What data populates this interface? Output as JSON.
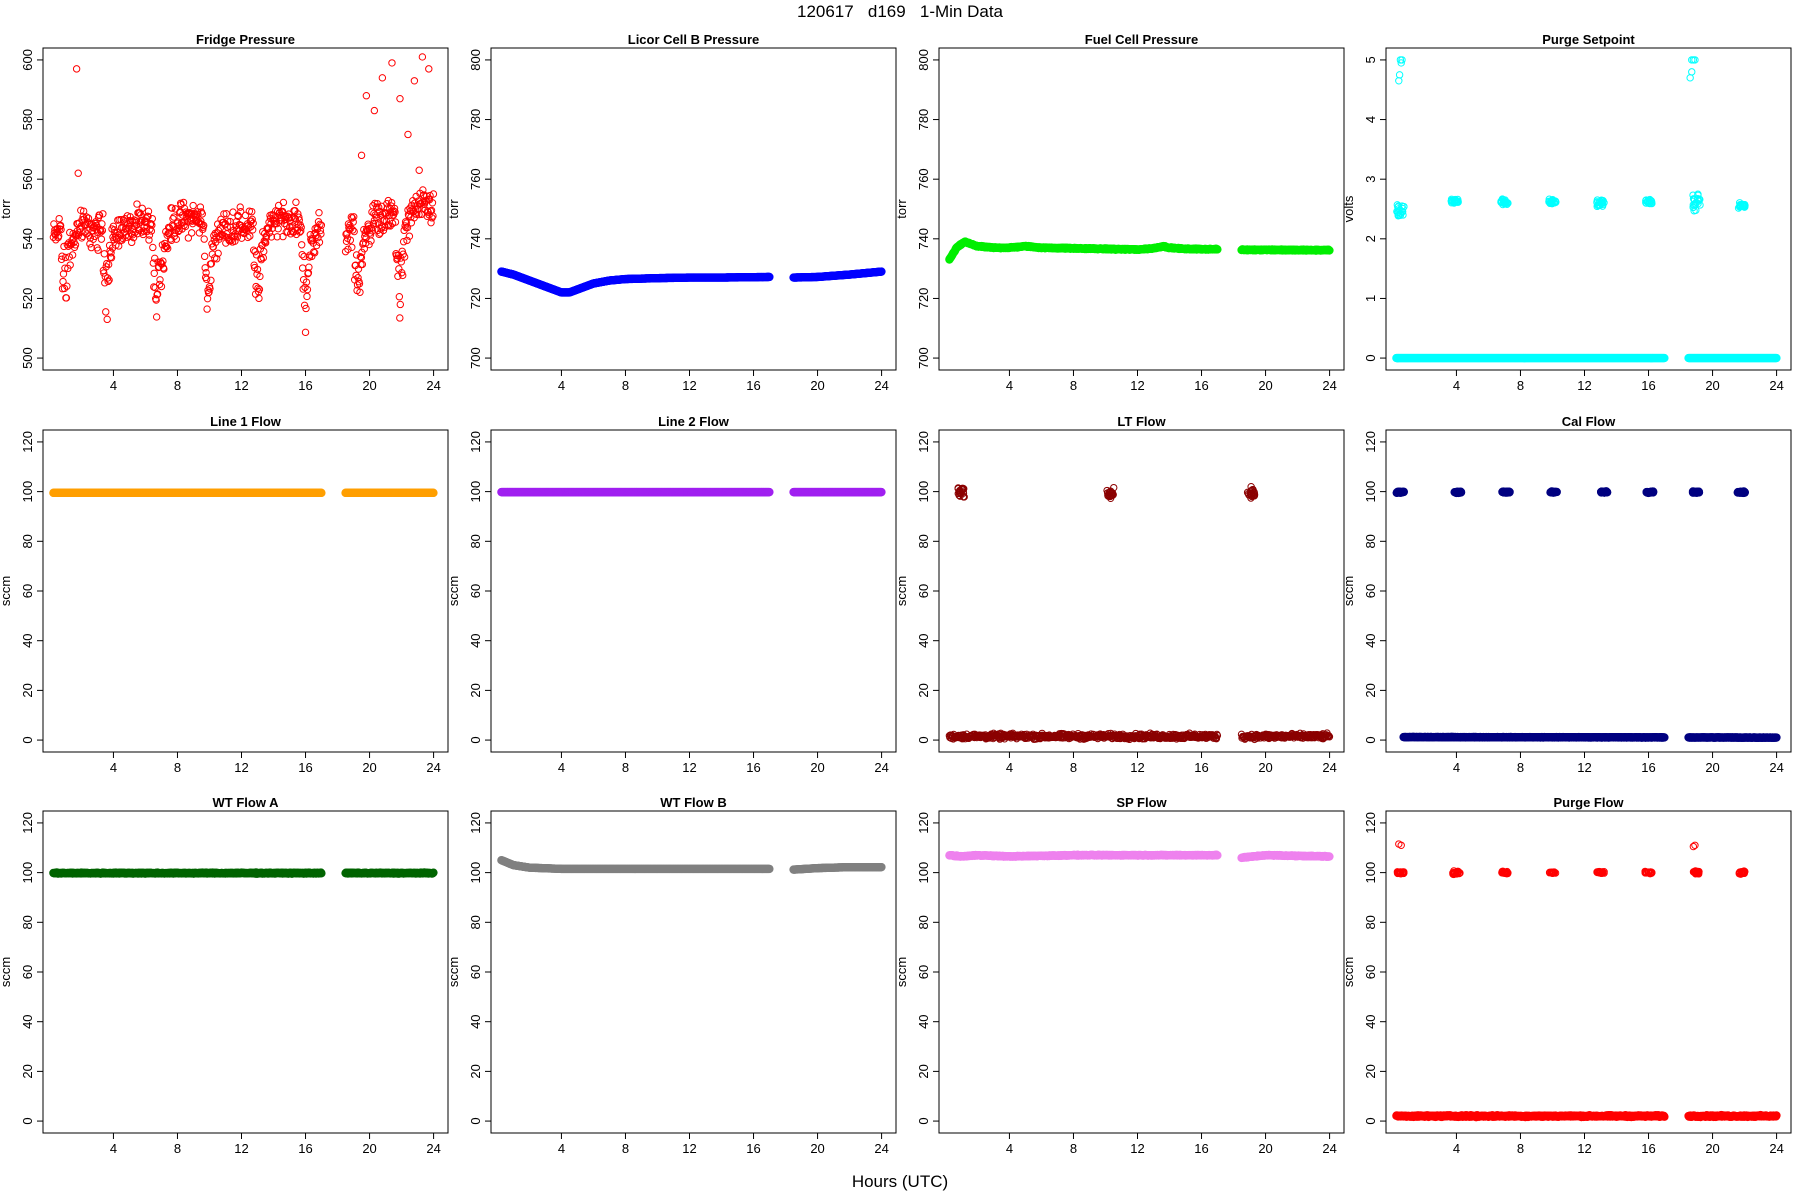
{
  "header": {
    "title": "120617   d169   1-Min Data",
    "xlabel": "Hours (UTC)"
  },
  "chart_data": [
    {
      "type": "scatter",
      "title": "Fridge Pressure",
      "ylabel": "torr",
      "ylim": [
        500,
        600
      ],
      "yticks": [
        500,
        520,
        540,
        560,
        580,
        600
      ],
      "xlim": [
        0,
        24
      ],
      "xticks": [
        4,
        8,
        12,
        16,
        20,
        24
      ],
      "color": "#ff0000",
      "style": "open",
      "segments": [
        [
          0.25,
          17
        ],
        [
          18.5,
          24
        ]
      ],
      "base": [
        [
          0.25,
          540
        ],
        [
          1,
          546
        ],
        [
          2,
          544
        ],
        [
          3,
          542
        ],
        [
          4,
          546
        ],
        [
          5,
          543
        ],
        [
          6,
          545
        ],
        [
          7,
          541
        ],
        [
          8,
          546
        ],
        [
          9,
          547
        ],
        [
          10,
          545
        ],
        [
          11,
          543
        ],
        [
          12,
          544
        ],
        [
          13,
          545
        ],
        [
          14,
          547
        ],
        [
          15,
          546
        ],
        [
          16,
          544
        ],
        [
          17,
          544
        ],
        [
          18.5,
          540
        ],
        [
          19,
          545
        ],
        [
          20,
          546
        ],
        [
          21,
          547
        ],
        [
          22,
          549
        ],
        [
          23,
          550
        ],
        [
          24,
          551
        ]
      ],
      "noise": 14,
      "dips": [
        0.9,
        3.5,
        6.6,
        9.8,
        12.9,
        15.9,
        19.2,
        21.8
      ],
      "outliers": [
        [
          1.7,
          597
        ],
        [
          1.8,
          562
        ],
        [
          19.8,
          588
        ],
        [
          20.3,
          583
        ],
        [
          20.8,
          594
        ],
        [
          21.4,
          599
        ],
        [
          21.9,
          587
        ],
        [
          22.4,
          575
        ],
        [
          22.8,
          593
        ],
        [
          23.3,
          601
        ],
        [
          23.7,
          597
        ],
        [
          23.1,
          563
        ],
        [
          19.5,
          568
        ]
      ]
    },
    {
      "type": "line",
      "title": "Licor Cell B Pressure",
      "ylabel": "torr",
      "ylim": [
        700,
        800
      ],
      "yticks": [
        700,
        720,
        740,
        760,
        780,
        800
      ],
      "xlim": [
        0,
        24
      ],
      "xticks": [
        4,
        8,
        12,
        16,
        20,
        24
      ],
      "color": "#0000ff",
      "style": "thick",
      "segments": [
        [
          0.25,
          17
        ],
        [
          18.5,
          24
        ]
      ],
      "base": [
        [
          0.25,
          729
        ],
        [
          1,
          728
        ],
        [
          2,
          726
        ],
        [
          3,
          724
        ],
        [
          4,
          722
        ],
        [
          4.5,
          722
        ],
        [
          5,
          723
        ],
        [
          6,
          725
        ],
        [
          7,
          726
        ],
        [
          8,
          726.5
        ],
        [
          10,
          726.8
        ],
        [
          12,
          727
        ],
        [
          14,
          727
        ],
        [
          17,
          727.2
        ],
        [
          18.5,
          727
        ],
        [
          20,
          727.2
        ],
        [
          22,
          728
        ],
        [
          24,
          729
        ]
      ],
      "noise": 0
    },
    {
      "type": "line",
      "title": "Fuel Cell Pressure",
      "ylabel": "torr",
      "ylim": [
        700,
        800
      ],
      "yticks": [
        700,
        720,
        740,
        760,
        780,
        800
      ],
      "xlim": [
        0,
        24
      ],
      "xticks": [
        4,
        8,
        12,
        16,
        20,
        24
      ],
      "color": "#00ee00",
      "style": "thick",
      "segments": [
        [
          0.25,
          17
        ],
        [
          18.5,
          24
        ]
      ],
      "base": [
        [
          0.25,
          733
        ],
        [
          0.7,
          737
        ],
        [
          1.2,
          739
        ],
        [
          2,
          737.5
        ],
        [
          3,
          737
        ],
        [
          4,
          737
        ],
        [
          5,
          737.5
        ],
        [
          6,
          737
        ],
        [
          8,
          736.8
        ],
        [
          10,
          736.6
        ],
        [
          12,
          736.4
        ],
        [
          13,
          736.8
        ],
        [
          13.6,
          737.5
        ],
        [
          14,
          737
        ],
        [
          15,
          736.6
        ],
        [
          17,
          736.5
        ],
        [
          18.5,
          736.3
        ],
        [
          20,
          736.3
        ],
        [
          22,
          736.2
        ],
        [
          24,
          736.2
        ]
      ],
      "noise": 0.4
    },
    {
      "type": "scatter",
      "title": "Purge Setpoint",
      "ylabel": "volts",
      "ylim": [
        0,
        5
      ],
      "yticks": [
        0,
        1,
        2,
        3,
        4,
        5
      ],
      "xlim": [
        0,
        24
      ],
      "xticks": [
        4,
        8,
        12,
        16,
        20,
        24
      ],
      "color": "#00ffff",
      "style": "mixed",
      "segments": [
        [
          0.25,
          17
        ],
        [
          18.5,
          24
        ]
      ],
      "base": [
        [
          0.25,
          0
        ],
        [
          24,
          0
        ]
      ],
      "noise": 0,
      "clusters": [
        [
          0.5,
          2.48,
          0.08
        ],
        [
          3.9,
          2.62,
          0.03
        ],
        [
          7,
          2.62,
          0.04
        ],
        [
          10,
          2.62,
          0.03
        ],
        [
          13,
          2.6,
          0.04
        ],
        [
          16,
          2.62,
          0.03
        ],
        [
          19,
          2.62,
          0.1
        ],
        [
          21.8,
          2.56,
          0.03
        ]
      ],
      "outliers": [
        [
          0.4,
          4.65
        ],
        [
          0.45,
          4.75
        ],
        [
          0.5,
          5
        ],
        [
          0.6,
          5
        ],
        [
          0.55,
          4.95
        ],
        [
          18.6,
          4.7
        ],
        [
          18.7,
          4.8
        ],
        [
          18.8,
          5
        ],
        [
          18.9,
          5
        ],
        [
          18.7,
          5
        ]
      ]
    },
    {
      "type": "line",
      "title": "Line 1 Flow",
      "ylabel": "sccm",
      "ylim": [
        0,
        120
      ],
      "yticks": [
        0,
        20,
        40,
        60,
        80,
        100,
        120
      ],
      "xlim": [
        0,
        24
      ],
      "xticks": [
        4,
        8,
        12,
        16,
        20,
        24
      ],
      "color": "#ff9f00",
      "style": "thick",
      "segments": [
        [
          0.25,
          17
        ],
        [
          18.5,
          24
        ]
      ],
      "base": [
        [
          0.25,
          99.5
        ],
        [
          24,
          99.5
        ]
      ],
      "noise": 0
    },
    {
      "type": "line",
      "title": "Line 2 Flow",
      "ylabel": "sccm",
      "ylim": [
        0,
        120
      ],
      "yticks": [
        0,
        20,
        40,
        60,
        80,
        100,
        120
      ],
      "xlim": [
        0,
        24
      ],
      "xticks": [
        4,
        8,
        12,
        16,
        20,
        24
      ],
      "color": "#a020f0",
      "style": "thick",
      "segments": [
        [
          0.25,
          17
        ],
        [
          18.5,
          24
        ]
      ],
      "base": [
        [
          0.25,
          99.8
        ],
        [
          24,
          99.8
        ]
      ],
      "noise": 0
    },
    {
      "type": "scatter",
      "title": "LT Flow",
      "ylabel": "sccm",
      "ylim": [
        0,
        120
      ],
      "yticks": [
        0,
        20,
        40,
        60,
        80,
        100,
        120
      ],
      "xlim": [
        0,
        24
      ],
      "xticks": [
        4,
        8,
        12,
        16,
        20,
        24
      ],
      "color": "#8b0000",
      "style": "open",
      "segments": [
        [
          0.25,
          17
        ],
        [
          18.5,
          24
        ]
      ],
      "base": [
        [
          0.25,
          1.5
        ],
        [
          24,
          1.5
        ]
      ],
      "noise": 2.5,
      "clusters": [
        [
          1,
          99.5,
          1.5
        ],
        [
          10.3,
          99.5,
          1.5
        ],
        [
          19.1,
          99.5,
          1.5
        ]
      ]
    },
    {
      "type": "scatter",
      "title": "Cal Flow",
      "ylabel": "sccm",
      "ylim": [
        0,
        120
      ],
      "yticks": [
        0,
        20,
        40,
        60,
        80,
        100,
        120
      ],
      "xlim": [
        0,
        24
      ],
      "xticks": [
        4,
        8,
        12,
        16,
        20,
        24
      ],
      "color": "#000080",
      "style": "thick",
      "segments": [
        [
          0.7,
          17
        ],
        [
          18.5,
          24
        ]
      ],
      "base": [
        [
          0.7,
          1.2
        ],
        [
          24,
          1
        ]
      ],
      "noise": 0.2,
      "clusters": [
        [
          0.5,
          99.8,
          0.2
        ],
        [
          4.1,
          99.7,
          0.2
        ],
        [
          7.1,
          99.8,
          0.2
        ],
        [
          10.1,
          99.8,
          0.2
        ],
        [
          13.2,
          99.8,
          0.2
        ],
        [
          16.1,
          99.8,
          0.2
        ],
        [
          19,
          99.8,
          0.2
        ],
        [
          21.8,
          99.7,
          0.2
        ]
      ]
    },
    {
      "type": "line",
      "title": "WT Flow A",
      "ylabel": "sccm",
      "ylim": [
        0,
        120
      ],
      "yticks": [
        0,
        20,
        40,
        60,
        80,
        100,
        120
      ],
      "xlim": [
        0,
        24
      ],
      "xticks": [
        4,
        8,
        12,
        16,
        20,
        24
      ],
      "color": "#006400",
      "style": "thick",
      "segments": [
        [
          0.25,
          17
        ],
        [
          18.5,
          24
        ]
      ],
      "base": [
        [
          0.25,
          99.8
        ],
        [
          24,
          99.8
        ]
      ],
      "noise": 0.5
    },
    {
      "type": "line",
      "title": "WT Flow B",
      "ylabel": "sccm",
      "ylim": [
        0,
        120
      ],
      "yticks": [
        0,
        20,
        40,
        60,
        80,
        100,
        120
      ],
      "xlim": [
        0,
        24
      ],
      "xticks": [
        4,
        8,
        12,
        16,
        20,
        24
      ],
      "color": "#808080",
      "style": "thick",
      "segments": [
        [
          0.25,
          17
        ],
        [
          18.5,
          24
        ]
      ],
      "base": [
        [
          0.25,
          105
        ],
        [
          1,
          103
        ],
        [
          2,
          102
        ],
        [
          4,
          101.5
        ],
        [
          8,
          101.5
        ],
        [
          12,
          101.5
        ],
        [
          17,
          101.5
        ],
        [
          18.5,
          101.2
        ],
        [
          20,
          101.8
        ],
        [
          22,
          102.2
        ],
        [
          24,
          102.2
        ]
      ],
      "noise": 0
    },
    {
      "type": "line",
      "title": "SP Flow",
      "ylabel": "sccm",
      "ylim": [
        0,
        120
      ],
      "yticks": [
        0,
        20,
        40,
        60,
        80,
        100,
        120
      ],
      "xlim": [
        0,
        24
      ],
      "xticks": [
        4,
        8,
        12,
        16,
        20,
        24
      ],
      "color": "#ee82ee",
      "style": "thick",
      "segments": [
        [
          0.25,
          17
        ],
        [
          18.5,
          24
        ]
      ],
      "base": [
        [
          0.25,
          107
        ],
        [
          1,
          106.5
        ],
        [
          2,
          107
        ],
        [
          4,
          106.5
        ],
        [
          8,
          107
        ],
        [
          12,
          107
        ],
        [
          17,
          107
        ],
        [
          18.5,
          106
        ],
        [
          20,
          107
        ],
        [
          24,
          106.5
        ]
      ],
      "noise": 0.4
    },
    {
      "type": "scatter",
      "title": "Purge Flow",
      "ylabel": "sccm",
      "ylim": [
        0,
        120
      ],
      "yticks": [
        0,
        20,
        40,
        60,
        80,
        100,
        120
      ],
      "xlim": [
        0,
        24
      ],
      "xticks": [
        4,
        8,
        12,
        16,
        20,
        24
      ],
      "color": "#ff0000",
      "style": "mixed",
      "segments": [
        [
          0.25,
          17
        ],
        [
          18.5,
          24
        ]
      ],
      "base": [
        [
          0.25,
          2
        ],
        [
          24,
          2
        ]
      ],
      "noise": 0.8,
      "clusters": [
        [
          0.5,
          100,
          0.3
        ],
        [
          4,
          100,
          0.5
        ],
        [
          7,
          100,
          0.4
        ],
        [
          10,
          100,
          0.3
        ],
        [
          13,
          100,
          0.3
        ],
        [
          16,
          100,
          0.3
        ],
        [
          19,
          100,
          0.4
        ],
        [
          21.8,
          100,
          0.5
        ]
      ],
      "outliers": [
        [
          0.4,
          111.5
        ],
        [
          0.55,
          111
        ],
        [
          18.8,
          110.5
        ],
        [
          18.9,
          111
        ]
      ]
    }
  ]
}
